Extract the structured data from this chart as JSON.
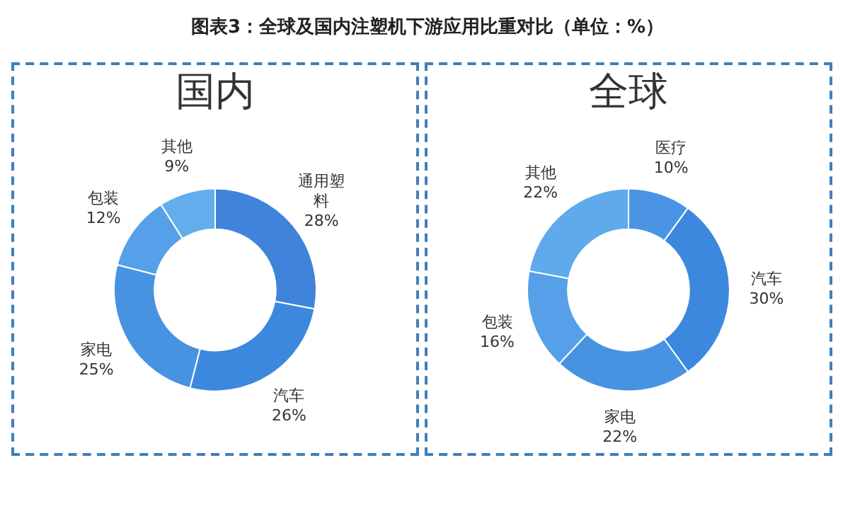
{
  "chart_data": [
    {
      "type": "donut",
      "title": "国内",
      "annotations": [
        "图表3：全球及国内注塑机下游应用比重对比（单位：%）"
      ],
      "categories": [
        "通用塑料",
        "汽车",
        "家电",
        "包装",
        "其他"
      ],
      "values": [
        28,
        26,
        25,
        12,
        9
      ],
      "value_labels": [
        "28%",
        "26%",
        "25%",
        "12%",
        "9%"
      ],
      "colors": [
        "#3f83da",
        "#3b88de",
        "#4793e2",
        "#55a0e8",
        "#64aded"
      ]
    },
    {
      "type": "donut",
      "title": "全球",
      "categories": [
        "医疗",
        "汽车",
        "家电",
        "包装",
        "其他"
      ],
      "values": [
        10,
        30,
        22,
        16,
        22
      ],
      "value_labels": [
        "10%",
        "30%",
        "22%",
        "16%",
        "22%"
      ],
      "colors": [
        "#4a94e3",
        "#3b88de",
        "#4793e2",
        "#55a0e8",
        "#5eaaec"
      ]
    }
  ]
}
